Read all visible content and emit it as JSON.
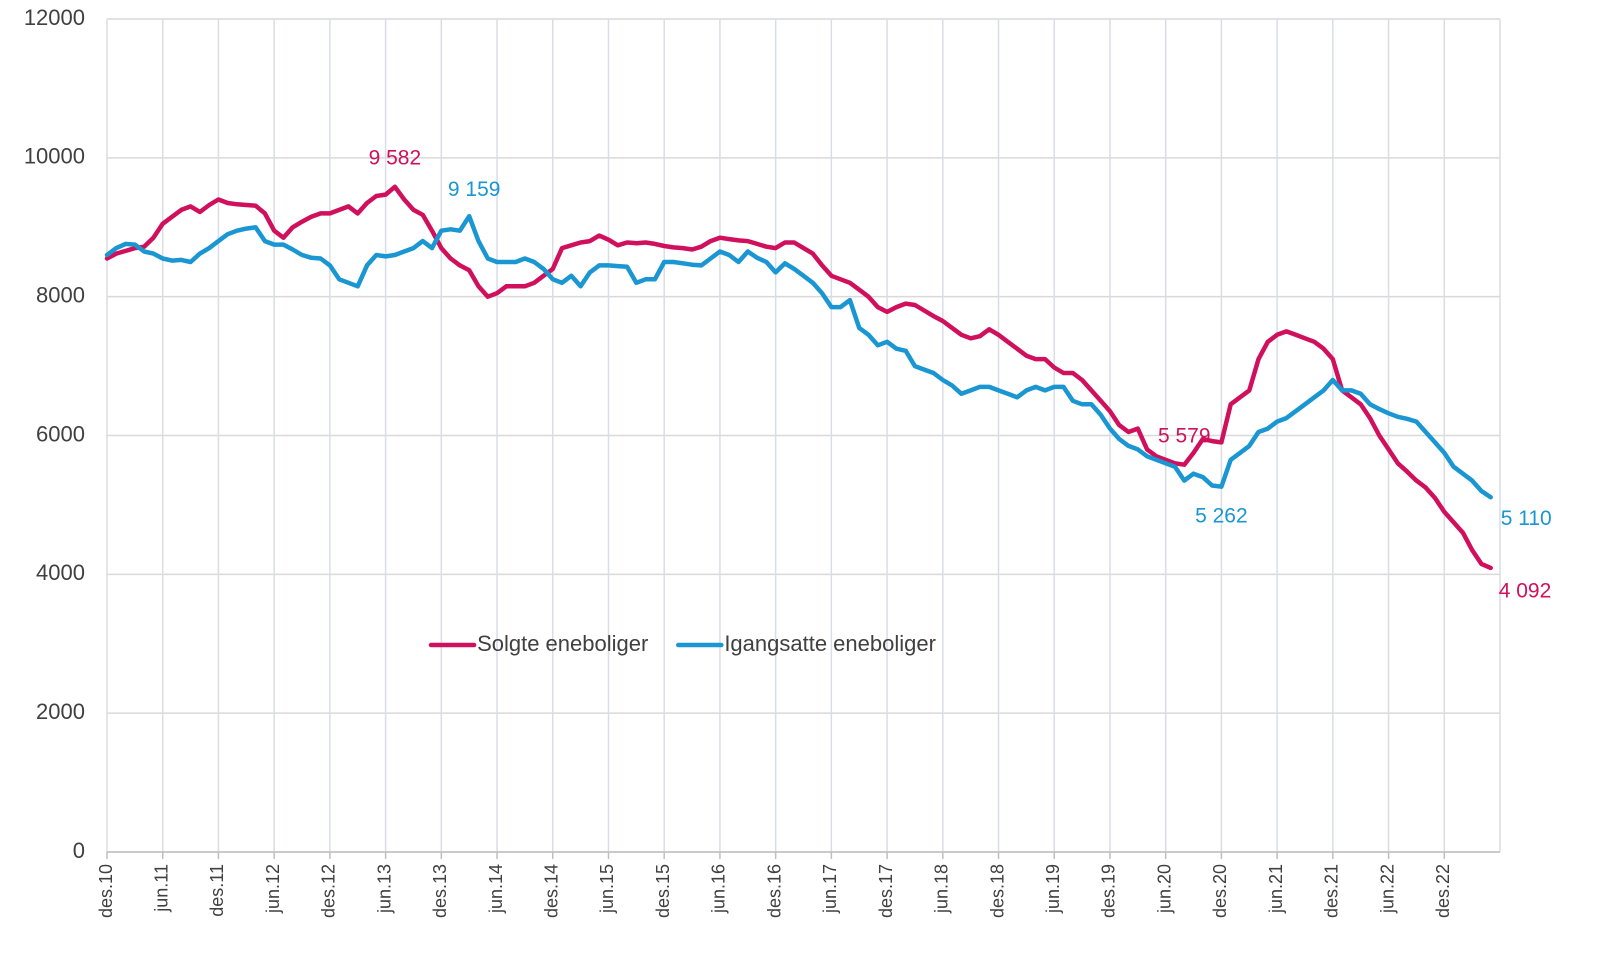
{
  "chart_data": {
    "type": "line",
    "categories": [
      "des.10",
      null,
      null,
      null,
      null,
      null,
      "jun.11",
      null,
      null,
      null,
      null,
      null,
      "des.11",
      null,
      null,
      null,
      null,
      null,
      "jun.12",
      null,
      null,
      null,
      null,
      null,
      "des.12",
      null,
      null,
      null,
      null,
      null,
      "jun.13",
      null,
      null,
      null,
      null,
      null,
      "des.13",
      null,
      null,
      null,
      null,
      null,
      "jun.14",
      null,
      null,
      null,
      null,
      null,
      "des.14",
      null,
      null,
      null,
      null,
      null,
      "jun.15",
      null,
      null,
      null,
      null,
      null,
      "des.15",
      null,
      null,
      null,
      null,
      null,
      "jun.16",
      null,
      null,
      null,
      null,
      null,
      "des.16",
      null,
      null,
      null,
      null,
      null,
      "jun.17",
      null,
      null,
      null,
      null,
      null,
      "des.17",
      null,
      null,
      null,
      null,
      null,
      "jun.18",
      null,
      null,
      null,
      null,
      null,
      "des.18",
      null,
      null,
      null,
      null,
      null,
      "jun.19",
      null,
      null,
      null,
      null,
      null,
      "des.19",
      null,
      null,
      null,
      null,
      null,
      "jun.20",
      null,
      null,
      null,
      null,
      null,
      "des.20",
      null,
      null,
      null,
      null,
      null,
      "jun.21",
      null,
      null,
      null,
      null,
      null,
      "des.21",
      null,
      null,
      null,
      null,
      null,
      "jun.22",
      null,
      null,
      null,
      null,
      null,
      "des.22",
      null,
      null,
      null,
      null,
      null
    ],
    "series": [
      {
        "name": "Solgte eneboliger",
        "color": "#d0105c",
        "values": [
          8550,
          8620,
          8660,
          8700,
          8720,
          8850,
          9050,
          9150,
          9250,
          9300,
          9220,
          9320,
          9400,
          9350,
          9330,
          9320,
          9310,
          9200,
          8950,
          8850,
          9000,
          9080,
          9150,
          9200,
          9200,
          9250,
          9300,
          9200,
          9350,
          9450,
          9470,
          9582,
          9400,
          9250,
          9180,
          8950,
          8700,
          8550,
          8450,
          8380,
          8150,
          8000,
          8050,
          8150,
          8150,
          8150,
          8200,
          8300,
          8400,
          8700,
          8740,
          8780,
          8800,
          8880,
          8820,
          8740,
          8780,
          8770,
          8780,
          8760,
          8730,
          8710,
          8700,
          8680,
          8720,
          8800,
          8850,
          8830,
          8810,
          8800,
          8760,
          8720,
          8700,
          8780,
          8780,
          8700,
          8620,
          8450,
          8300,
          8250,
          8200,
          8100,
          8000,
          7850,
          7780,
          7850,
          7900,
          7880,
          7800,
          7720,
          7650,
          7550,
          7450,
          7400,
          7430,
          7530,
          7450,
          7350,
          7250,
          7150,
          7100,
          7100,
          6980,
          6900,
          6900,
          6800,
          6650,
          6500,
          6350,
          6150,
          6050,
          6100,
          5800,
          5700,
          5650,
          5600,
          5579,
          5750,
          5950,
          5920,
          5900,
          6450,
          6550,
          6650,
          7100,
          7350,
          7450,
          7500,
          7450,
          7400,
          7350,
          7250,
          7100,
          6650,
          6550,
          6450,
          6250,
          6000,
          5800,
          5600,
          5480,
          5350,
          5250,
          5100,
          4900,
          4750,
          4600,
          4350,
          4150,
          4092
        ],
        "value_labels": {
          "31": "9 582",
          "116": "5 579",
          "149": "4 092"
        }
      },
      {
        "name": "Igangsatte eneboliger",
        "color": "#1a96d2",
        "values": [
          8600,
          8700,
          8760,
          8750,
          8650,
          8620,
          8550,
          8520,
          8530,
          8500,
          8620,
          8700,
          8800,
          8900,
          8950,
          8980,
          9000,
          8800,
          8750,
          8750,
          8680,
          8600,
          8560,
          8550,
          8450,
          8250,
          8200,
          8150,
          8450,
          8600,
          8580,
          8600,
          8650,
          8700,
          8800,
          8700,
          8950,
          8970,
          8950,
          9159,
          8800,
          8550,
          8500,
          8500,
          8500,
          8550,
          8500,
          8400,
          8250,
          8200,
          8300,
          8150,
          8350,
          8450,
          8450,
          8440,
          8430,
          8200,
          8250,
          8250,
          8500,
          8500,
          8480,
          8460,
          8450,
          8550,
          8650,
          8600,
          8500,
          8650,
          8560,
          8500,
          8350,
          8480,
          8400,
          8300,
          8200,
          8050,
          7850,
          7850,
          7950,
          7550,
          7450,
          7300,
          7350,
          7250,
          7220,
          7000,
          6950,
          6900,
          6800,
          6720,
          6600,
          6650,
          6700,
          6700,
          6650,
          6600,
          6550,
          6650,
          6700,
          6650,
          6700,
          6700,
          6500,
          6450,
          6450,
          6300,
          6100,
          5950,
          5850,
          5800,
          5700,
          5650,
          5600,
          5550,
          5350,
          5450,
          5400,
          5280,
          5262,
          5650,
          5750,
          5850,
          6050,
          6100,
          6200,
          6250,
          6350,
          6450,
          6550,
          6650,
          6800,
          6650,
          6650,
          6600,
          6450,
          6380,
          6320,
          6270,
          6240,
          6200,
          6050,
          5900,
          5750,
          5550,
          5450,
          5350,
          5200,
          5110
        ],
        "value_labels": {
          "39": "9 159",
          "120": "5 262",
          "149": "5 110"
        }
      }
    ],
    "ylim": [
      0,
      12000
    ],
    "yticks": [
      0,
      2000,
      4000,
      6000,
      8000,
      10000,
      12000
    ],
    "grid": true,
    "legend": "center"
  }
}
